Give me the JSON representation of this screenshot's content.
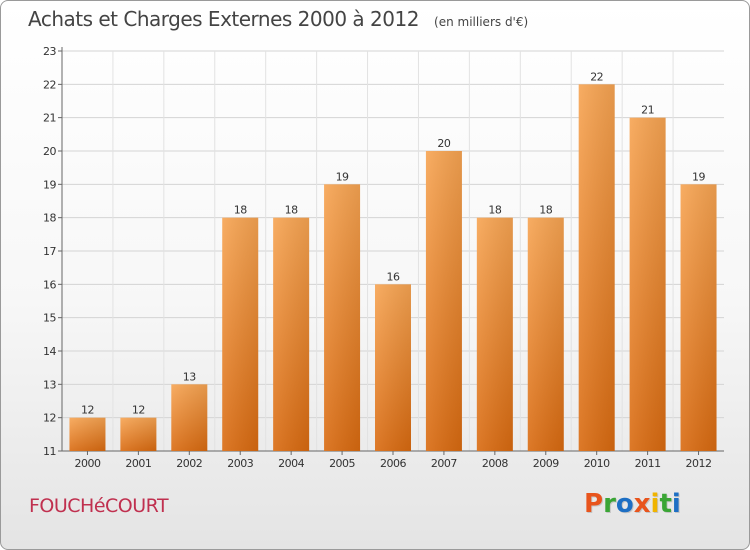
{
  "header": {
    "title": "Achats et Charges Externes 2000 à 2012",
    "subtitle": "(en milliers d'€)"
  },
  "footer": {
    "commune": "FOUCHéCOURT",
    "brand": "Proxiti",
    "brand_colors": [
      "#e8541c",
      "#3aa535",
      "#1d6fc4",
      "#e8541c",
      "#f0b400",
      "#3aa535",
      "#1d6fc4"
    ]
  },
  "colors": {
    "bar_top": "#f7a452",
    "bar_bottom": "#d96a10",
    "commune": "#c0304f",
    "text": "#444444"
  },
  "chart_data": {
    "type": "bar",
    "title": "Achats et Charges Externes 2000 à 2012",
    "subtitle": "(en milliers d'€)",
    "categories": [
      "2000",
      "2001",
      "2002",
      "2003",
      "2004",
      "2005",
      "2006",
      "2007",
      "2008",
      "2009",
      "2010",
      "2011",
      "2012"
    ],
    "values": [
      12,
      12,
      13,
      18,
      18,
      19,
      16,
      20,
      18,
      18,
      22,
      21,
      19
    ],
    "ylim": [
      11,
      23
    ],
    "yticks": [
      11,
      12,
      13,
      14,
      15,
      16,
      17,
      18,
      19,
      20,
      21,
      22,
      23
    ],
    "grid": true,
    "xlabel": "",
    "ylabel": ""
  }
}
